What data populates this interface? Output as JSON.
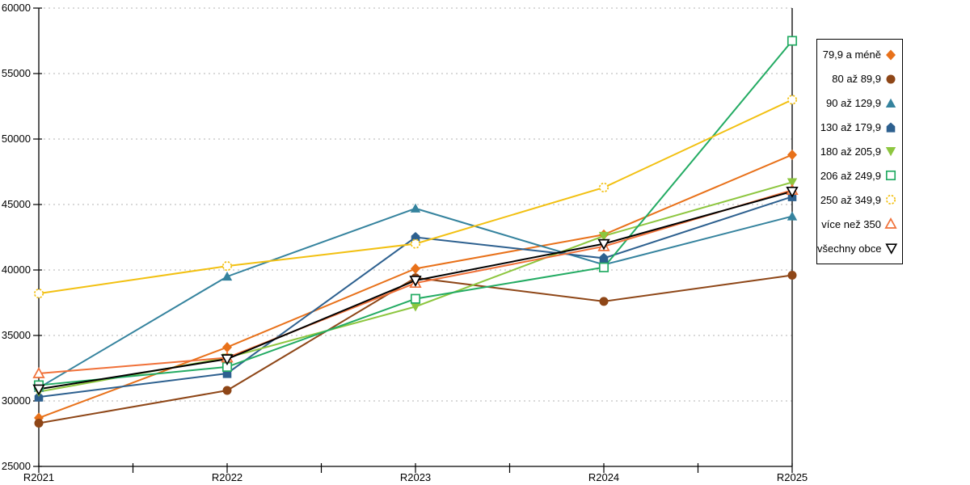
{
  "chart_data": {
    "type": "line",
    "title": "",
    "xlabel": "",
    "ylabel": "",
    "categories": [
      "R2021",
      "R2022",
      "R2023",
      "R2024",
      "R2025"
    ],
    "series": [
      {
        "name": "79,9 a méně",
        "color": "#e8711a",
        "marker": "diamond",
        "hollow": false,
        "values": [
          28700,
          34100,
          40100,
          42700,
          48800
        ]
      },
      {
        "name": "80 až 89,9",
        "color": "#8e4617",
        "marker": "circle",
        "hollow": false,
        "values": [
          28300,
          30800,
          39400,
          37600,
          39600
        ]
      },
      {
        "name": "90 až 129,9",
        "color": "#35839e",
        "marker": "triangle-up",
        "hollow": false,
        "values": [
          31000,
          39500,
          44700,
          40400,
          44100
        ]
      },
      {
        "name": "130 až 179,9",
        "color": "#2d608f",
        "marker": "pentagon",
        "hollow": false,
        "values": [
          30300,
          32100,
          42500,
          40900,
          45600
        ]
      },
      {
        "name": "180 až 205,9",
        "color": "#8dc63f",
        "marker": "triangle-down",
        "hollow": false,
        "values": [
          30700,
          33300,
          37200,
          42600,
          46700
        ]
      },
      {
        "name": "206 až 249,9",
        "color": "#23ab63",
        "marker": "square",
        "hollow": true,
        "values": [
          31200,
          32600,
          37800,
          40200,
          57500
        ]
      },
      {
        "name": "250 až 349,9",
        "color": "#f2c011",
        "marker": "circle",
        "hollow": true,
        "marker_dash": true,
        "values": [
          38200,
          40300,
          42000,
          46300,
          53000
        ]
      },
      {
        "name": "více než 350",
        "color": "#f07038",
        "marker": "triangle-up",
        "hollow": true,
        "values": [
          32100,
          33300,
          39000,
          41800,
          46100
        ]
      },
      {
        "name": "všechny obce",
        "color": "#000000",
        "marker": "triangle-down",
        "hollow": true,
        "values": [
          30900,
          33200,
          39200,
          42000,
          46000
        ]
      }
    ],
    "ylim": [
      25000,
      60000
    ],
    "yticks": [
      25000,
      30000,
      35000,
      40000,
      45000,
      50000,
      55000,
      60000
    ],
    "ytick_labels": [
      "25000",
      "30000",
      "35000",
      "40000",
      "45000",
      "50000",
      "55000",
      "60000"
    ],
    "grid": "horizontal-dotted",
    "grid_color": "#b3b3b3",
    "axis_color": "#000000",
    "legend_position": "right",
    "legend_border_color": "#000000",
    "background_color": "#ffffff"
  }
}
